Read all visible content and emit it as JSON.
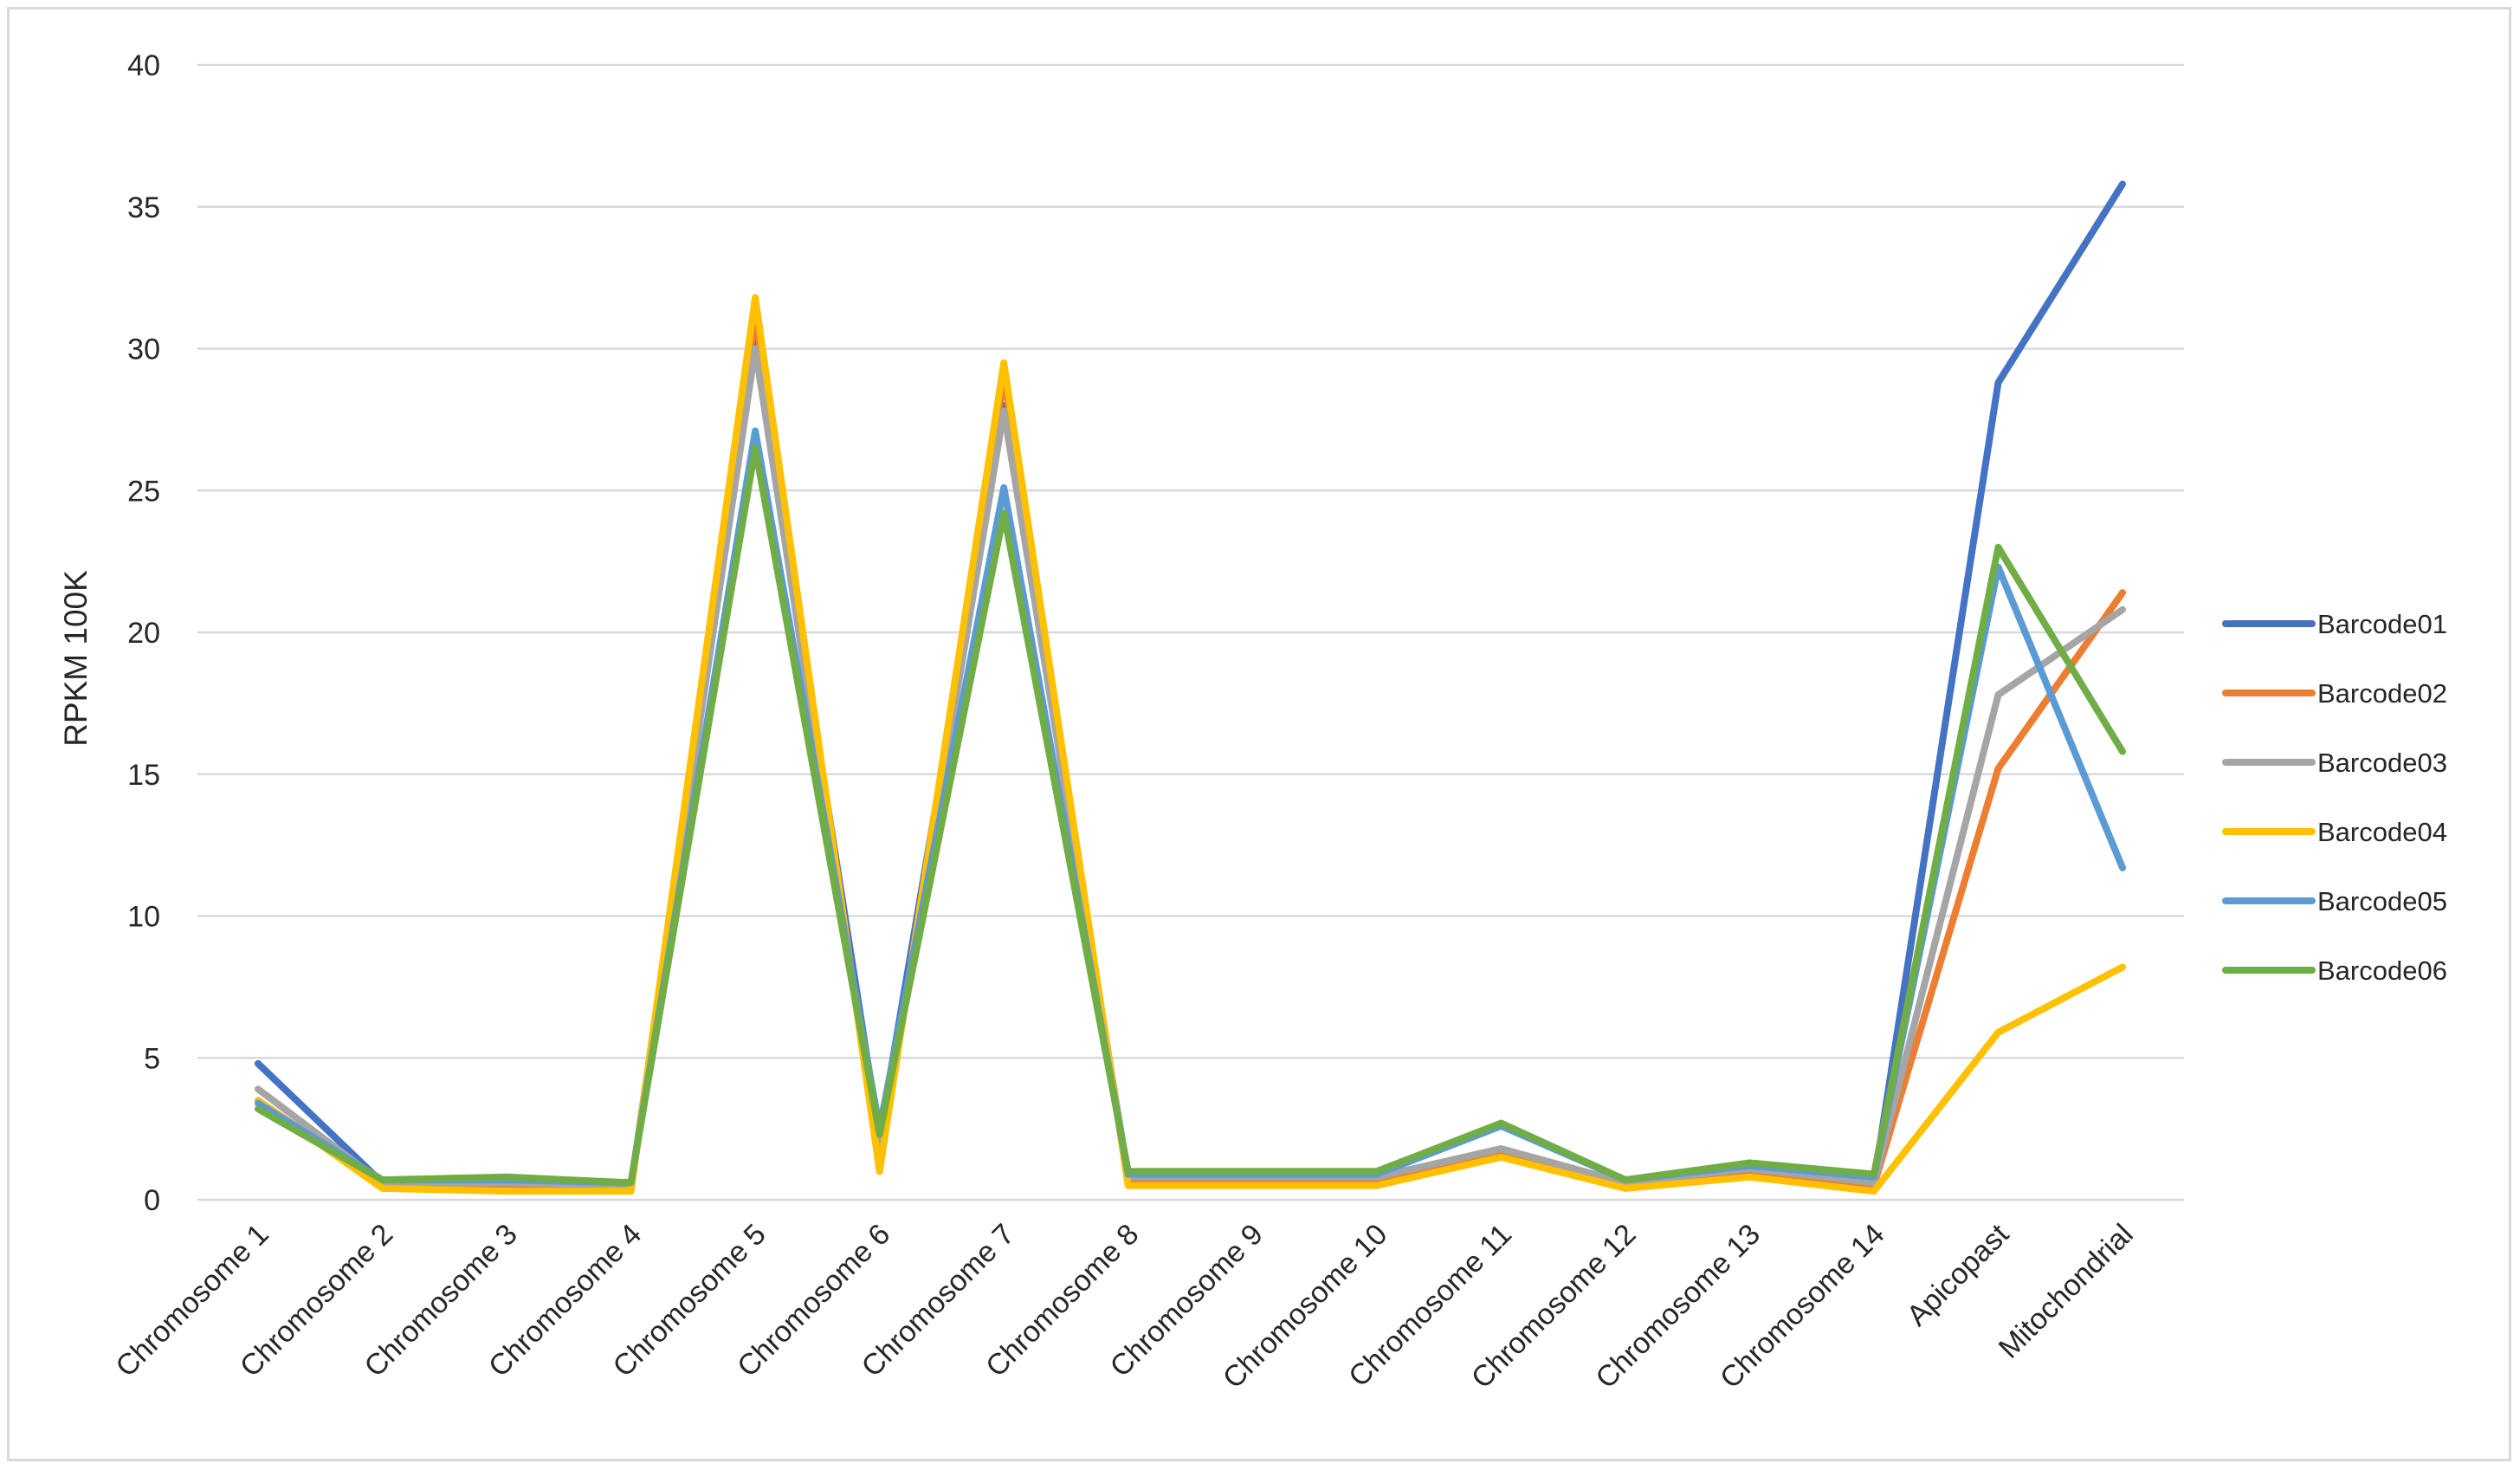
{
  "chart_data": {
    "type": "line",
    "title": "",
    "xlabel": "",
    "ylabel": "RPKM 100K",
    "ylim": [
      0,
      40
    ],
    "yticks": [
      0,
      5,
      10,
      15,
      20,
      25,
      30,
      35,
      40
    ],
    "grid": "horizontal",
    "legend": "right",
    "categories": [
      "Chromosome 1",
      "Chromosome 2",
      "Chromosome 3",
      "Chromosome 4",
      "Chromosome 5",
      "Chromosome 6",
      "Chromosome 7",
      "Chromosome 8",
      "Chromosome 9",
      "Chromosome 10",
      "Chromosome 11",
      "Chromosome 12",
      "Chromosome 13",
      "Chromosome 14",
      "Apicopast",
      "Mitochondrial"
    ],
    "series": [
      {
        "name": "Barcode01",
        "color": "#4472c4",
        "values": [
          4.8,
          0.6,
          0.6,
          0.5,
          30.2,
          2.2,
          28.0,
          0.8,
          0.8,
          0.8,
          1.7,
          0.6,
          1.0,
          0.6,
          28.8,
          35.8
        ]
      },
      {
        "name": "Barcode02",
        "color": "#ed7d31",
        "values": [
          3.5,
          0.5,
          0.5,
          0.4,
          31.2,
          1.3,
          29.0,
          0.6,
          0.6,
          0.6,
          1.6,
          0.5,
          0.9,
          0.5,
          15.2,
          21.4
        ]
      },
      {
        "name": "Barcode03",
        "color": "#a5a5a5",
        "values": [
          3.9,
          0.6,
          0.6,
          0.5,
          30.0,
          1.5,
          27.8,
          0.8,
          0.8,
          0.8,
          1.8,
          0.6,
          1.1,
          0.6,
          17.8,
          20.8
        ]
      },
      {
        "name": "Barcode04",
        "color": "#ffc000",
        "values": [
          3.5,
          0.4,
          0.3,
          0.3,
          31.8,
          1.0,
          29.5,
          0.5,
          0.5,
          0.5,
          1.5,
          0.4,
          0.8,
          0.3,
          5.9,
          8.2
        ]
      },
      {
        "name": "Barcode05",
        "color": "#5b9bd5",
        "values": [
          3.4,
          0.7,
          0.7,
          0.6,
          27.1,
          2.5,
          25.1,
          0.9,
          0.9,
          0.9,
          2.6,
          0.7,
          1.2,
          0.8,
          22.3,
          11.7
        ]
      },
      {
        "name": "Barcode06",
        "color": "#70ad47",
        "values": [
          3.2,
          0.7,
          0.8,
          0.6,
          26.5,
          2.3,
          24.2,
          1.0,
          1.0,
          1.0,
          2.7,
          0.7,
          1.3,
          0.9,
          23.0,
          15.8
        ]
      }
    ]
  }
}
